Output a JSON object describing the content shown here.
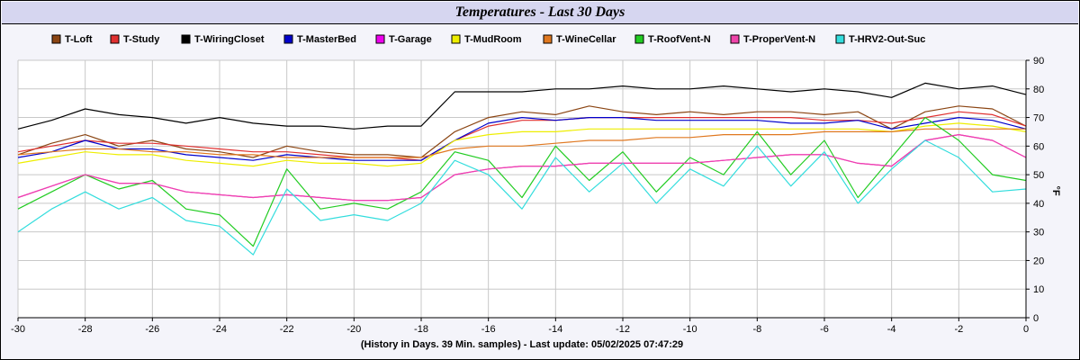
{
  "chart_data": {
    "type": "line",
    "title": "Temperatures - Last 30 Days",
    "xlabel": "(History in Days. 39 Min. samples) - Last update: 05/02/2025 07:47:29",
    "ylabel": "°F",
    "xlim": [
      -30,
      0
    ],
    "ylim": [
      0,
      90
    ],
    "x_ticks": [
      -30,
      -28,
      -26,
      -24,
      -22,
      -20,
      -18,
      -16,
      -14,
      -12,
      -10,
      -8,
      -6,
      -4,
      -2,
      0
    ],
    "y_ticks": [
      0,
      10,
      20,
      30,
      40,
      50,
      60,
      70,
      80,
      90
    ],
    "grid": true,
    "legend_position": "top",
    "x": [
      -30,
      -29,
      -28,
      -27,
      -26,
      -25,
      -24,
      -23,
      -22,
      -21,
      -20,
      -19,
      -18,
      -17,
      -16,
      -15,
      -14,
      -13,
      -12,
      -11,
      -10,
      -9,
      -8,
      -7,
      -6,
      -5,
      -4,
      -3,
      -2,
      -1,
      0
    ],
    "series": [
      {
        "name": "T-Loft",
        "color": "#8b4513",
        "values": [
          57,
          61,
          64,
          60,
          62,
          59,
          58,
          56,
          60,
          58,
          57,
          57,
          56,
          65,
          70,
          72,
          71,
          74,
          72,
          71,
          72,
          71,
          72,
          72,
          71,
          72,
          66,
          72,
          74,
          73,
          67
        ]
      },
      {
        "name": "T-Study",
        "color": "#e03030",
        "values": [
          58,
          60,
          62,
          61,
          61,
          60,
          59,
          58,
          58,
          57,
          56,
          56,
          55,
          62,
          67,
          69,
          69,
          70,
          70,
          70,
          70,
          70,
          70,
          70,
          69,
          69,
          68,
          70,
          72,
          71,
          67
        ]
      },
      {
        "name": "T-WiringCloset",
        "color": "#000000",
        "values": [
          66,
          69,
          73,
          71,
          70,
          68,
          70,
          68,
          67,
          67,
          66,
          67,
          67,
          79,
          79,
          79,
          80,
          80,
          81,
          80,
          80,
          81,
          80,
          79,
          80,
          79,
          77,
          82,
          80,
          81,
          78
        ]
      },
      {
        "name": "T-MasterBed",
        "color": "#0000cc",
        "values": [
          56,
          58,
          62,
          59,
          59,
          57,
          56,
          55,
          57,
          56,
          55,
          55,
          55,
          62,
          68,
          70,
          69,
          70,
          70,
          69,
          69,
          69,
          69,
          68,
          68,
          69,
          66,
          68,
          70,
          69,
          66
        ]
      },
      {
        "name": "T-Garage",
        "color": "#ee00ee",
        "values": [
          42,
          46,
          50,
          47,
          47,
          44,
          43,
          42,
          43,
          42,
          41,
          41,
          42,
          50,
          52,
          53,
          53,
          54,
          54,
          54,
          54,
          55,
          56,
          57,
          57,
          54,
          53,
          62,
          64,
          62,
          56
        ]
      },
      {
        "name": "T-MudRoom",
        "color": "#eeee00",
        "values": [
          54,
          56,
          58,
          57,
          57,
          55,
          54,
          53,
          55,
          54,
          54,
          53,
          54,
          62,
          64,
          65,
          65,
          66,
          66,
          66,
          66,
          66,
          66,
          66,
          66,
          66,
          65,
          67,
          68,
          67,
          65
        ]
      },
      {
        "name": "T-WineCellar",
        "color": "#e07820",
        "values": [
          57,
          58,
          59,
          59,
          58,
          58,
          57,
          57,
          56,
          56,
          56,
          56,
          56,
          59,
          60,
          60,
          61,
          62,
          62,
          63,
          63,
          64,
          64,
          64,
          65,
          65,
          65,
          66,
          66,
          66,
          66
        ]
      },
      {
        "name": "T-RoofVent-N",
        "color": "#22cc22",
        "values": [
          38,
          44,
          50,
          45,
          48,
          38,
          36,
          25,
          52,
          38,
          40,
          38,
          44,
          58,
          55,
          42,
          60,
          48,
          58,
          44,
          56,
          50,
          65,
          50,
          62,
          42,
          56,
          70,
          62,
          50,
          48
        ]
      },
      {
        "name": "T-ProperVent-N",
        "color": "#ee44aa",
        "values": [
          42,
          46,
          50,
          47,
          47,
          44,
          43,
          42,
          43,
          42,
          41,
          41,
          42,
          50,
          52,
          53,
          53,
          54,
          54,
          54,
          54,
          55,
          56,
          57,
          57,
          54,
          53,
          62,
          64,
          62,
          56
        ]
      },
      {
        "name": "T-HRV2-Out-Suc",
        "color": "#33dddd",
        "values": [
          30,
          38,
          44,
          38,
          42,
          34,
          32,
          22,
          45,
          34,
          36,
          34,
          40,
          55,
          50,
          38,
          56,
          44,
          54,
          40,
          52,
          46,
          60,
          46,
          58,
          40,
          52,
          62,
          56,
          44,
          45
        ]
      }
    ]
  }
}
